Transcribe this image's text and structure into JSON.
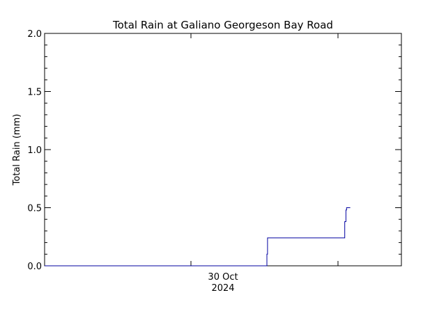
{
  "chart_data": {
    "type": "line",
    "title": "Total Rain at Galiano Georgeson Bay Road",
    "xlabel": "",
    "ylabel": "Total Rain (mm)",
    "ylim": [
      0.0,
      2.0
    ],
    "yticks": [
      "0.0",
      "0.5",
      "1.0",
      "1.5",
      "2.0"
    ],
    "x_tick_label": {
      "line1": "30 Oct",
      "line2": "2024"
    },
    "grid": false,
    "series": [
      {
        "line_color": "#0000a0",
        "x_hours": [
          -24.0,
          12.4,
          12.4,
          12.5,
          12.5,
          25.1,
          25.1,
          25.3,
          25.3,
          25.4,
          25.4,
          26.0
        ],
        "values": [
          0.0,
          0.0,
          0.1,
          0.1,
          0.24,
          0.24,
          0.38,
          0.38,
          0.48,
          0.48,
          0.5,
          0.5
        ]
      }
    ]
  }
}
